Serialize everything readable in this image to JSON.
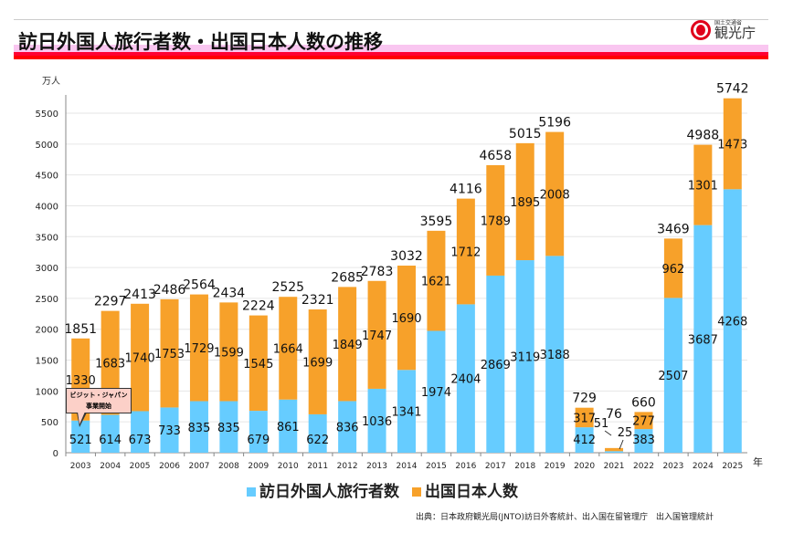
{
  "header": {
    "title": "訪日外国人旅行者数・出国日本人数の推移",
    "logo_small": "国土交通省",
    "logo_big": "観光庁"
  },
  "chart_data": {
    "type": "bar",
    "stacked": true,
    "ylabel": "万人",
    "xlabel": "年",
    "ylim": [
      0,
      5500
    ],
    "yticks": [
      0,
      500,
      1000,
      1500,
      2000,
      2500,
      3000,
      3500,
      4000,
      4500,
      5000,
      5500
    ],
    "grid": true,
    "legend_position": "bottom",
    "categories": [
      "2003",
      "2004",
      "2005",
      "2006",
      "2007",
      "2008",
      "2009",
      "2010",
      "2011",
      "2012",
      "2013",
      "2014",
      "2015",
      "2016",
      "2017",
      "2018",
      "2019",
      "2020",
      "2021",
      "2022",
      "2023",
      "2024",
      "2025"
    ],
    "series": [
      {
        "name": "訪日外国人旅行者数",
        "color": "#66ccff",
        "values": [
          521,
          614,
          673,
          733,
          835,
          835,
          679,
          861,
          622,
          836,
          1036,
          1341,
          1974,
          2404,
          2869,
          3119,
          3188,
          412,
          25,
          383,
          2507,
          3687,
          4268
        ]
      },
      {
        "name": "出国日本人数",
        "color": "#f7a12a",
        "values": [
          1330,
          1683,
          1740,
          1753,
          1729,
          1599,
          1545,
          1664,
          1699,
          1849,
          1747,
          1690,
          1621,
          1712,
          1789,
          1895,
          2008,
          317,
          51,
          277,
          962,
          1301,
          1473
        ]
      }
    ],
    "totals": [
      1851,
      2297,
      2413,
      2486,
      2564,
      2434,
      2224,
      2525,
      2321,
      2685,
      2783,
      3032,
      3595,
      4116,
      4658,
      5015,
      5196,
      729,
      76,
      660,
      3469,
      4988,
      5742
    ],
    "annotation": "ビジット・ジャパン事業開始"
  },
  "annotation": {
    "line1": "ビジット・ジャパン",
    "line2": "事業開始"
  },
  "source": "出典：日本政府観光局(JNTO)訪日外客統計、出入国在留管理庁　出入国管理統計"
}
